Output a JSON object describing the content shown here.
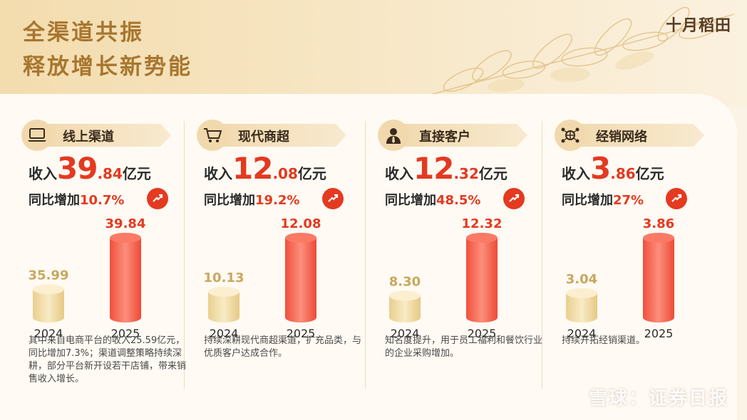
{
  "headline": {
    "line1": "全渠道共振",
    "line2": "释放增长新势能"
  },
  "brand": "十月稻田",
  "watermark": "雪球：证券日报",
  "colors": {
    "accent": "#e33a20",
    "gold": "#a8762f",
    "bar2024": "#f0dca4",
    "bar2025": "#f25a46"
  },
  "channels": [
    {
      "label": "线上渠道",
      "icon": "laptop-icon",
      "rev_prefix": "收入",
      "rev_int": "39",
      "rev_dec": ".84",
      "rev_unit": "亿元",
      "yoy_prefix": "同比增加",
      "yoy_value": "10.7%",
      "desc": "其中来自电商平台的收入25.59亿元，同比增加7.3%；渠道调整策略持续深耕，部分平台新开设若干店铺，带来销售收入增长。"
    },
    {
      "label": "现代商超",
      "icon": "shopping-cart-icon",
      "rev_prefix": "收入",
      "rev_int": "12",
      "rev_dec": ".08",
      "rev_unit": "亿元",
      "yoy_prefix": "同比增加",
      "yoy_value": "19.2%",
      "desc": "持续深耕现代商超渠道，扩充品类，与优质客户达成合作。"
    },
    {
      "label": "直接客户",
      "icon": "business-person-icon",
      "rev_prefix": "收入",
      "rev_int": "12",
      "rev_dec": ".32",
      "rev_unit": "亿元",
      "yoy_prefix": "同比增加",
      "yoy_value": "48.5%",
      "desc": "知名度提升，用于员工福利和餐饮行业的企业采购增加。"
    },
    {
      "label": "经销网络",
      "icon": "network-globe-icon",
      "rev_prefix": "收入",
      "rev_int": "3",
      "rev_dec": ".86",
      "rev_unit": "亿元",
      "yoy_prefix": "同比增加",
      "yoy_value": "27%",
      "desc": "持续开拓经销渠道。"
    }
  ],
  "chart_data": [
    {
      "type": "bar",
      "title": "线上渠道",
      "categories": [
        "2024",
        "2025"
      ],
      "values": [
        35.99,
        39.84
      ]
    },
    {
      "type": "bar",
      "title": "现代商超",
      "categories": [
        "2024",
        "2025"
      ],
      "values": [
        10.13,
        12.08
      ]
    },
    {
      "type": "bar",
      "title": "直接客户",
      "categories": [
        "2024",
        "2025"
      ],
      "values": [
        8.3,
        12.32
      ]
    },
    {
      "type": "bar",
      "title": "经销网络",
      "categories": [
        "2024",
        "2025"
      ],
      "values": [
        3.04,
        3.86
      ]
    }
  ]
}
